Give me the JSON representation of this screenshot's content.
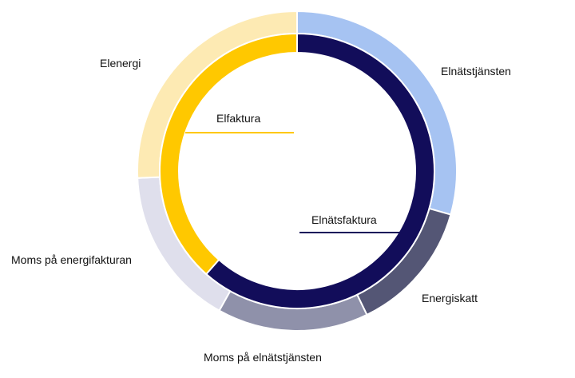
{
  "chart_data": {
    "type": "pie",
    "title": "",
    "inner": {
      "segments": [
        {
          "name": "Elnätsfaktura",
          "value": 61.5,
          "color": "#120d5a"
        },
        {
          "name": "Elfaktura",
          "value": 38.5,
          "color": "#ffc800"
        }
      ]
    },
    "outer": {
      "segments": [
        {
          "name": "Elnätstjänsten",
          "value": 29.4,
          "color": "#a6c3f2"
        },
        {
          "name": "Energiskatt",
          "value": 13.4,
          "color": "#545675"
        },
        {
          "name": "Moms på elnätstjänsten",
          "value": 15.3,
          "color": "#8f91aa"
        },
        {
          "name": "Moms på energifakturan",
          "value": 16.2,
          "color": "#dfdfec"
        },
        {
          "name": "Elenergi",
          "value": 25.7,
          "color": "#fdeab3"
        }
      ]
    }
  }
}
